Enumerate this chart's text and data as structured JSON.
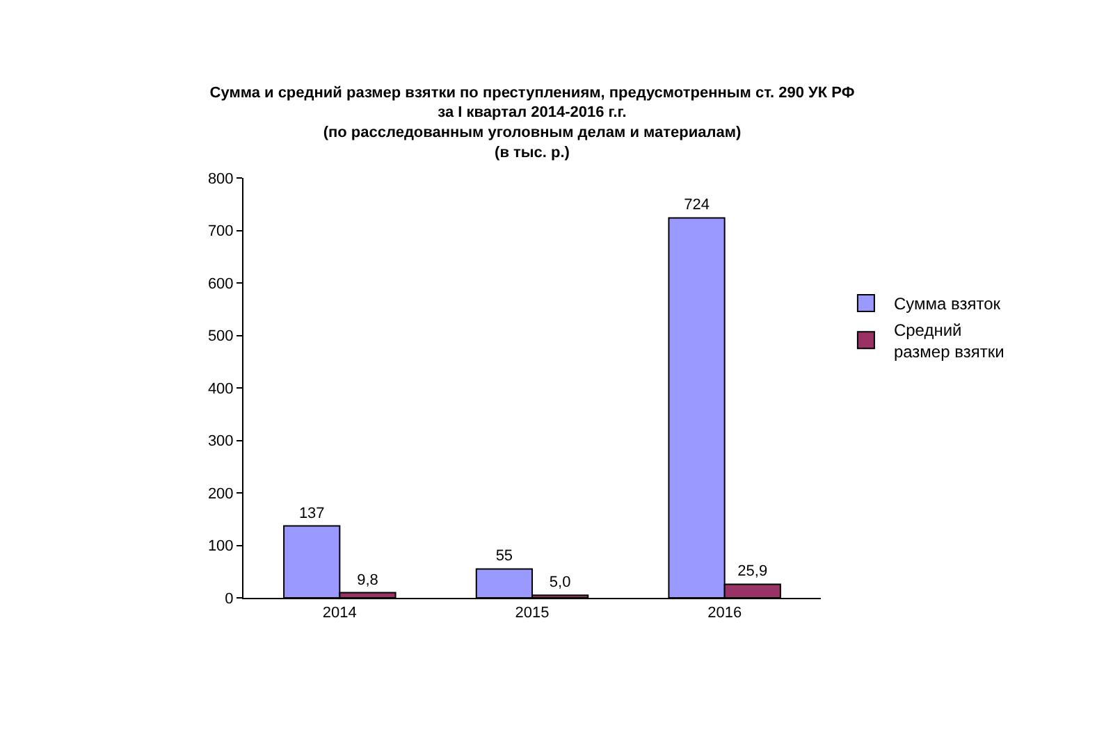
{
  "chart_data": {
    "type": "bar",
    "title": "Сумма и средний размер взятки по преступлениям, предусмотренным ст. 290 УК РФ\nза I квартал 2014-2016 г.г.\n(по расследованным уголовным делам и материалам)\n(в тыс. р.)",
    "categories": [
      "2014",
      "2015",
      "2016"
    ],
    "series": [
      {
        "name": "Сумма взяток",
        "color": "#9999ff",
        "values": [
          137,
          55,
          724
        ],
        "value_labels": [
          "137",
          "55",
          "724"
        ]
      },
      {
        "name": "Средний\nразмер взятки",
        "color": "#993366",
        "values": [
          9.8,
          5.0,
          25.9
        ],
        "value_labels": [
          "9,8",
          "5,0",
          "25,9"
        ]
      }
    ],
    "ylim": [
      0,
      800
    ],
    "yticks": [
      0,
      100,
      200,
      300,
      400,
      500,
      600,
      700,
      800
    ],
    "grid": false,
    "legend": "right"
  }
}
